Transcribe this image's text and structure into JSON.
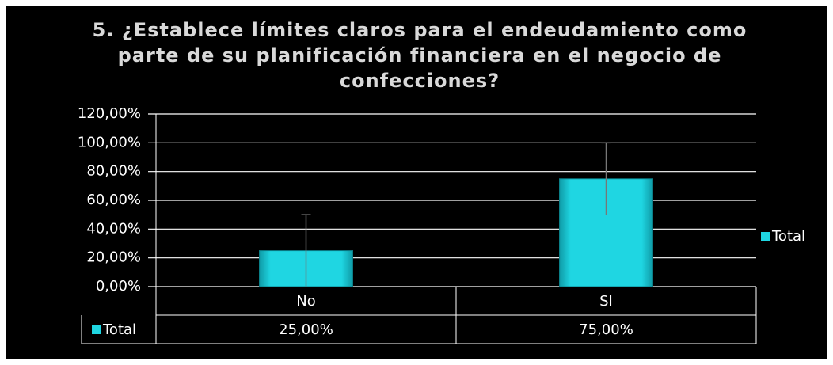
{
  "chart_data": {
    "type": "bar",
    "title": "5. ¿Establece límites claros para el endeudamiento como parte de su planificación financiera en el negocio de confecciones?",
    "categories": [
      "No",
      "SI"
    ],
    "series": [
      {
        "name": "Total",
        "color": "#1fd6e2",
        "values": [
          25,
          75
        ],
        "value_labels": [
          "25,00%",
          "75,00%"
        ],
        "errors": [
          25,
          25
        ]
      }
    ],
    "ylim": [
      0,
      120
    ],
    "yticks": [
      {
        "value": 0,
        "label": "0,00%"
      },
      {
        "value": 20,
        "label": "20,00%"
      },
      {
        "value": 40,
        "label": "40,00%"
      },
      {
        "value": 60,
        "label": "60,00%"
      },
      {
        "value": 80,
        "label": "80,00%"
      },
      {
        "value": 100,
        "label": "100,00%"
      },
      {
        "value": 120,
        "label": "120,00%"
      }
    ],
    "grid": true,
    "legend": "right",
    "data_table": true
  }
}
